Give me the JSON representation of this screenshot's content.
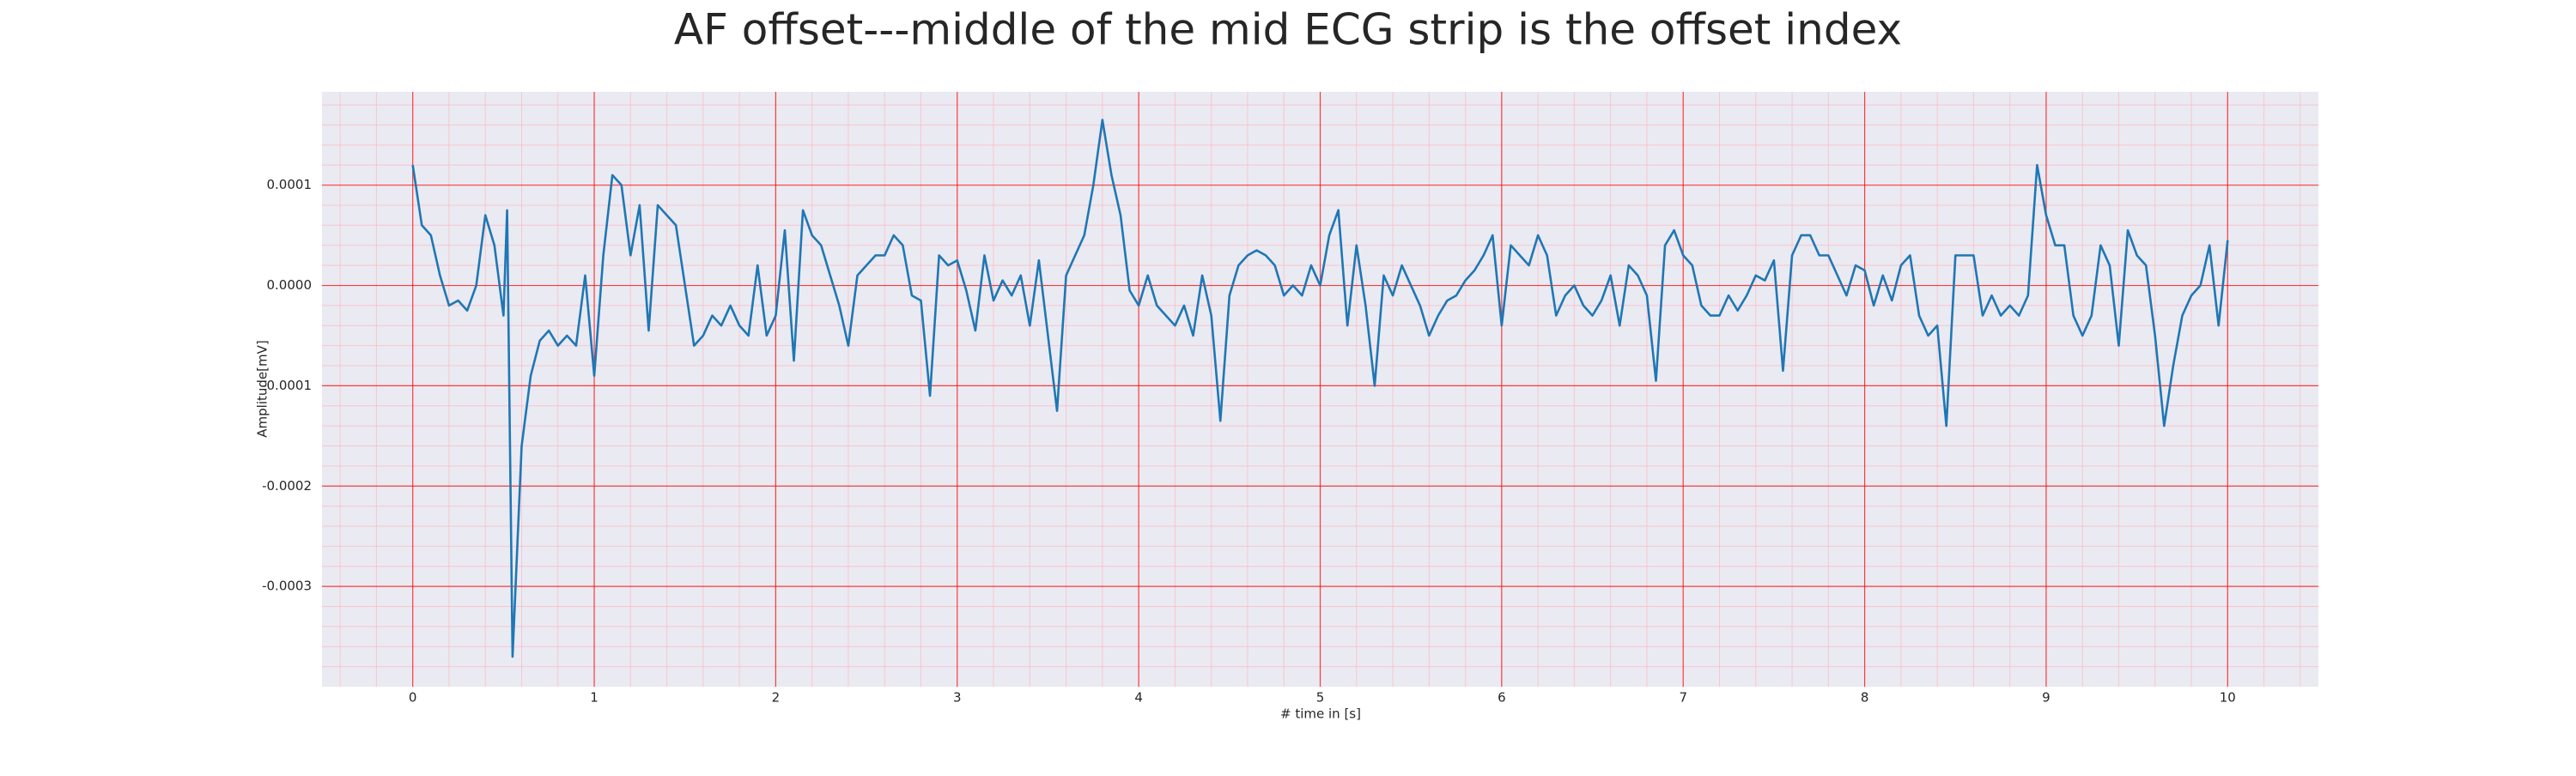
{
  "chart_data": {
    "type": "line",
    "title": "AF offset---middle of the mid ECG strip is the offset index",
    "x_label": "# time in [s]",
    "y_label": "Amplitude[mV]",
    "color": "#1f77b4",
    "grid": true,
    "minor_grid": true,
    "xlim": [
      -0.5,
      10.5
    ],
    "ylim": [
      -0.0004,
      0.000193
    ],
    "xticks": [
      0,
      1,
      2,
      3,
      4,
      5,
      6,
      7,
      8,
      9,
      10
    ],
    "yticks": [
      -0.0003,
      -0.0002,
      -0.0001,
      {
        "value": 0,
        "label": "0.0000"
      },
      0.0001
    ],
    "x": [
      0,
      0.05,
      0.1,
      0.15,
      0.2,
      0.25,
      0.3,
      0.35,
      0.4,
      0.45,
      0.5,
      0.52,
      0.55,
      0.6,
      0.65,
      0.7,
      0.75,
      0.8,
      0.85,
      0.9,
      0.95,
      1,
      1.05,
      1.1,
      1.15,
      1.2,
      1.25,
      1.3,
      1.35,
      1.4,
      1.45,
      1.5,
      1.55,
      1.6,
      1.65,
      1.7,
      1.75,
      1.8,
      1.85,
      1.9,
      1.95,
      2,
      2.05,
      2.1,
      2.15,
      2.2,
      2.25,
      2.3,
      2.35,
      2.4,
      2.45,
      2.5,
      2.55,
      2.6,
      2.65,
      2.7,
      2.75,
      2.8,
      2.85,
      2.9,
      2.95,
      3,
      3.05,
      3.1,
      3.15,
      3.2,
      3.25,
      3.3,
      3.35,
      3.4,
      3.45,
      3.5,
      3.55,
      3.6,
      3.65,
      3.7,
      3.75,
      3.8,
      3.85,
      3.9,
      3.95,
      4,
      4.05,
      4.1,
      4.15,
      4.2,
      4.25,
      4.3,
      4.35,
      4.4,
      4.45,
      4.5,
      4.55,
      4.6,
      4.65,
      4.7,
      4.75,
      4.8,
      4.85,
      4.9,
      4.95,
      5,
      5.05,
      5.1,
      5.15,
      5.2,
      5.25,
      5.3,
      5.35,
      5.4,
      5.45,
      5.5,
      5.55,
      5.6,
      5.65,
      5.7,
      5.75,
      5.8,
      5.85,
      5.9,
      5.95,
      6,
      6.05,
      6.1,
      6.15,
      6.2,
      6.25,
      6.3,
      6.35,
      6.4,
      6.45,
      6.5,
      6.55,
      6.6,
      6.65,
      6.7,
      6.75,
      6.8,
      6.85,
      6.9,
      6.95,
      7,
      7.05,
      7.1,
      7.15,
      7.2,
      7.25,
      7.3,
      7.35,
      7.4,
      7.45,
      7.5,
      7.55,
      7.6,
      7.65,
      7.7,
      7.75,
      7.8,
      7.85,
      7.9,
      7.95,
      8,
      8.05,
      8.1,
      8.15,
      8.2,
      8.25,
      8.3,
      8.35,
      8.4,
      8.45,
      8.5,
      8.55,
      8.6,
      8.65,
      8.7,
      8.75,
      8.8,
      8.85,
      8.9,
      8.95,
      9,
      9.05,
      9.1,
      9.15,
      9.2,
      9.25,
      9.3,
      9.35,
      9.4,
      9.45,
      9.5,
      9.55,
      9.6,
      9.65,
      9.7,
      9.75,
      9.8,
      9.85,
      9.9,
      9.95,
      10
    ],
    "values": [
      0.00012,
      6e-05,
      5e-05,
      1e-05,
      -2e-05,
      -1.5e-05,
      -2.5e-05,
      0,
      7e-05,
      4e-05,
      -3e-05,
      7.5e-05,
      -0.00037,
      -0.00016,
      -9e-05,
      -5.5e-05,
      -4.5e-05,
      -6e-05,
      -5e-05,
      -6e-05,
      1e-05,
      -9e-05,
      3e-05,
      0.00011,
      0.0001,
      3e-05,
      8e-05,
      -4.5e-05,
      8e-05,
      7e-05,
      6e-05,
      0,
      -6e-05,
      -5e-05,
      -3e-05,
      -4e-05,
      -2e-05,
      -4e-05,
      -5e-05,
      2e-05,
      -5e-05,
      -3e-05,
      5.5e-05,
      -7.5e-05,
      7.5e-05,
      5e-05,
      4e-05,
      1e-05,
      -2e-05,
      -6e-05,
      1e-05,
      2e-05,
      3e-05,
      3e-05,
      5e-05,
      4e-05,
      -1e-05,
      -1.5e-05,
      -0.00011,
      3e-05,
      2e-05,
      2.5e-05,
      -5e-06,
      -4.5e-05,
      3e-05,
      -1.5e-05,
      5e-06,
      -1e-05,
      1e-05,
      -4e-05,
      2.5e-05,
      -5e-05,
      -0.000125,
      1e-05,
      3e-05,
      5e-05,
      0.0001,
      0.000165,
      0.00011,
      7e-05,
      -5e-06,
      -2e-05,
      1e-05,
      -2e-05,
      -3e-05,
      -4e-05,
      -2e-05,
      -5e-05,
      1e-05,
      -3e-05,
      -0.000135,
      -1e-05,
      2e-05,
      3e-05,
      3.5e-05,
      3e-05,
      2e-05,
      -1e-05,
      0,
      -1e-05,
      2e-05,
      0,
      5e-05,
      7.5e-05,
      -4e-05,
      4e-05,
      -2e-05,
      -0.0001,
      1e-05,
      -1e-05,
      2e-05,
      0,
      -2e-05,
      -5e-05,
      -3e-05,
      -1.5e-05,
      -1e-05,
      5e-06,
      1.5e-05,
      3e-05,
      5e-05,
      -4e-05,
      4e-05,
      3e-05,
      2e-05,
      5e-05,
      3e-05,
      -3e-05,
      -1e-05,
      0,
      -2e-05,
      -3e-05,
      -1.5e-05,
      1e-05,
      -4e-05,
      2e-05,
      1e-05,
      -1e-05,
      -9.5e-05,
      4e-05,
      5.5e-05,
      3e-05,
      2e-05,
      -2e-05,
      -3e-05,
      -3e-05,
      -1e-05,
      -2.5e-05,
      -1e-05,
      1e-05,
      5e-06,
      2.5e-05,
      -8.5e-05,
      3e-05,
      5e-05,
      5e-05,
      3e-05,
      3e-05,
      1e-05,
      -1e-05,
      2e-05,
      1.5e-05,
      -2e-05,
      1e-05,
      -1.5e-05,
      2e-05,
      3e-05,
      -3e-05,
      -5e-05,
      -4e-05,
      -0.00014,
      3e-05,
      3e-05,
      3e-05,
      -3e-05,
      -1e-05,
      -3e-05,
      -2e-05,
      -3e-05,
      -1e-05,
      0.00012,
      7e-05,
      4e-05,
      4e-05,
      -3e-05,
      -5e-05,
      -3e-05,
      4e-05,
      2e-05,
      -6e-05,
      5.5e-05,
      3e-05,
      2e-05,
      -5e-05,
      -0.00014,
      -8e-05,
      -3e-05,
      -1e-05,
      0,
      4e-05,
      -4e-05,
      4.5e-05
    ]
  }
}
